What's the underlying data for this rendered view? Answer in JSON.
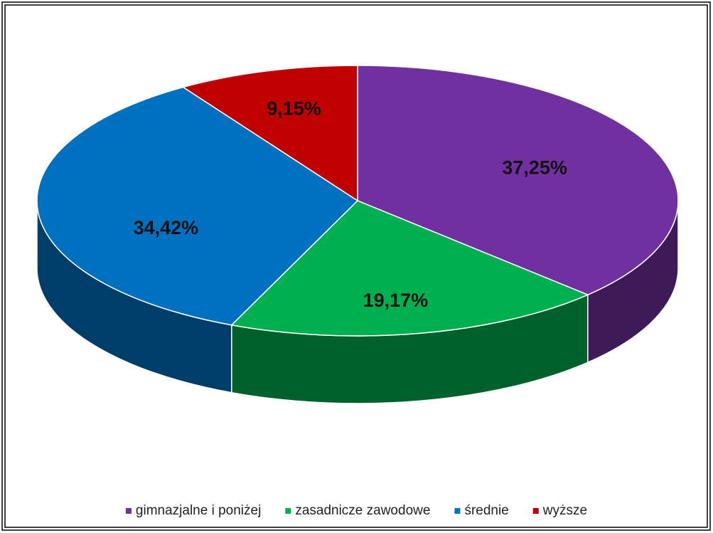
{
  "chart_data": {
    "type": "pie",
    "categories": [
      "gimnazjalne i poniżej",
      "zasadnicze zawodowe",
      "średnie",
      "wyższe"
    ],
    "values": [
      37.25,
      19.17,
      34.42,
      9.15
    ],
    "value_labels": [
      "37,25%",
      "19,17%",
      "34,42%",
      "9,15%"
    ],
    "colors": [
      "#7030a0",
      "#00b050",
      "#0070c0",
      "#c00000"
    ],
    "legend": "bottom"
  }
}
